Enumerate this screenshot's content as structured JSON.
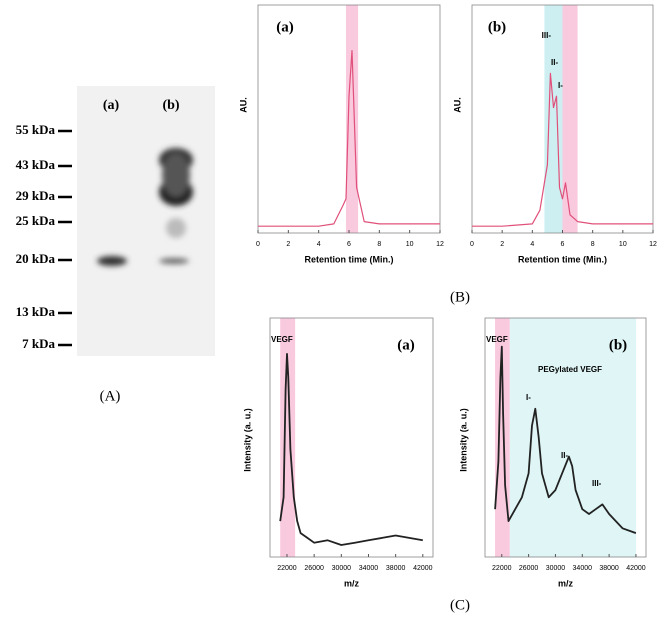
{
  "gel": {
    "lanes": [
      "(a)",
      "(b)"
    ],
    "markers": [
      "55 kDa",
      "43 kDa",
      "29 kDa",
      "25 kDa",
      "20 kDa",
      "13 kDa",
      "7 kDa"
    ],
    "caption": "(A)"
  },
  "captions": [
    "(B)",
    "(C)"
  ],
  "chart_data": [
    {
      "type": "line",
      "panel": "(a)",
      "xlabel": "Retention time (Min.)",
      "ylabel": "AU.",
      "xlim": [
        0,
        12
      ],
      "xticks": [
        0,
        2,
        4,
        6,
        8,
        10,
        12
      ],
      "ylim": [
        0,
        100
      ],
      "bands": [
        {
          "from": 5.8,
          "to": 6.6,
          "color": "#f9c9de"
        }
      ],
      "series": [
        {
          "color": "#e0507a",
          "x": [
            0,
            2,
            4,
            5,
            5.6,
            5.8,
            6,
            6.2,
            6.5,
            7,
            8,
            10,
            12
          ],
          "values": [
            3,
            3,
            3,
            4,
            12,
            15,
            60,
            80,
            20,
            5,
            4,
            4,
            4
          ]
        }
      ],
      "annotations": []
    },
    {
      "type": "line",
      "panel": "(b)",
      "xlabel": "Retention time (Min.)",
      "ylabel": "AU.",
      "xlim": [
        0,
        12
      ],
      "xticks": [
        0,
        2,
        4,
        6,
        8,
        10,
        12
      ],
      "ylim": [
        0,
        100
      ],
      "bands": [
        {
          "from": 4.8,
          "to": 6.0,
          "color": "#cdeff1"
        },
        {
          "from": 6.0,
          "to": 7.0,
          "color": "#f9c9de"
        }
      ],
      "series": [
        {
          "color": "#e0507a",
          "x": [
            0,
            2,
            4,
            4.5,
            5,
            5.2,
            5.4,
            5.6,
            5.8,
            6,
            6.2,
            6.5,
            7,
            8,
            10,
            12
          ],
          "values": [
            3,
            3,
            4,
            10,
            30,
            70,
            55,
            60,
            20,
            15,
            22,
            8,
            5,
            4,
            4,
            4
          ]
        }
      ],
      "annotations": [
        "III-",
        "II-",
        "I-"
      ]
    },
    {
      "type": "line",
      "panel": "(a)",
      "xlabel": "m/z",
      "ylabel": "Intensity (a. u.)",
      "xlim": [
        19500,
        43500
      ],
      "xticks": [
        22000,
        26000,
        30000,
        34000,
        38000,
        42000
      ],
      "ylim": [
        0,
        100
      ],
      "bands": [
        {
          "from": 21000,
          "to": 23200,
          "color": "#f9c9de"
        }
      ],
      "series": [
        {
          "color": "#222222",
          "x": [
            21000,
            21500,
            21800,
            22000,
            22200,
            22500,
            23000,
            23500,
            24000,
            25000,
            26000,
            28000,
            30000,
            32000,
            34000,
            36000,
            38000,
            40000,
            42000
          ],
          "values": [
            15,
            25,
            70,
            85,
            75,
            45,
            25,
            15,
            10,
            8,
            6,
            7,
            5,
            6,
            7,
            8,
            9,
            8,
            7
          ]
        }
      ],
      "annotations": [
        "VEGF"
      ]
    },
    {
      "type": "line",
      "panel": "(b)",
      "xlabel": "m/z",
      "ylabel": "Intensity (a. u.)",
      "xlim": [
        19500,
        43500
      ],
      "xticks": [
        22000,
        26000,
        30000,
        34000,
        38000,
        42000
      ],
      "ylim": [
        0,
        100
      ],
      "bands": [
        {
          "from": 21000,
          "to": 23200,
          "color": "#f9c9de"
        },
        {
          "from": 23200,
          "to": 42000,
          "color": "#dff5f6"
        }
      ],
      "series": [
        {
          "color": "#222222",
          "x": [
            21000,
            21500,
            21800,
            22000,
            22200,
            22500,
            23000,
            24000,
            25000,
            26000,
            26500,
            27000,
            27500,
            28000,
            29000,
            30000,
            31000,
            32000,
            32500,
            33000,
            34000,
            35000,
            36000,
            37000,
            38000,
            40000,
            42000
          ],
          "values": [
            20,
            40,
            75,
            88,
            60,
            30,
            15,
            20,
            25,
            35,
            55,
            62,
            50,
            35,
            25,
            28,
            35,
            42,
            38,
            28,
            20,
            18,
            20,
            22,
            18,
            12,
            10
          ]
        }
      ],
      "annotations": [
        "VEGF",
        "PEGylated VEGF",
        "I-",
        "II-",
        "III-"
      ]
    }
  ]
}
